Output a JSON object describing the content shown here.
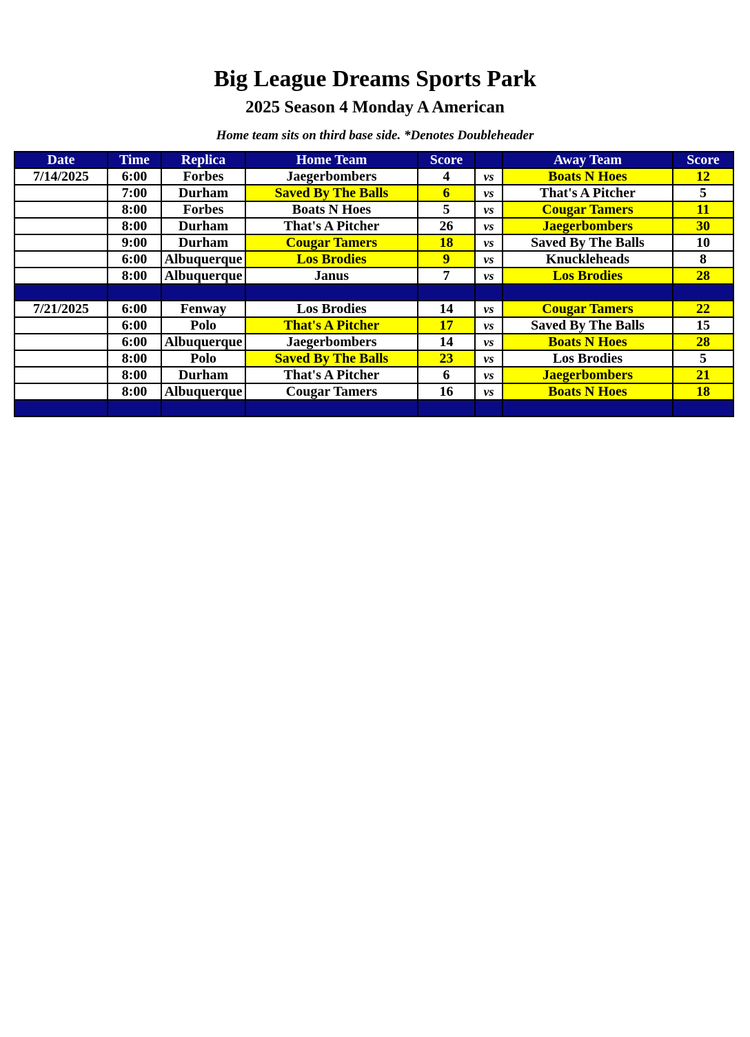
{
  "page": {
    "title": "Big League Dreams Sports Park",
    "subtitle": "2025 Season 4 Monday A American",
    "note": "Home team sits on third base side.  *Denotes Doubleheader"
  },
  "table": {
    "headers": [
      "Date",
      "Time",
      "Replica",
      "Home Team",
      "Score",
      "",
      "Away Team",
      "Score"
    ],
    "vs_label": "vs",
    "colors": {
      "header_bg": "#0a0a87",
      "header_text": "#ffffff",
      "winner_highlight": "#ffff00",
      "text": "#000000"
    },
    "blocks": [
      {
        "rows": [
          {
            "date": "7/14/2025",
            "time": "6:00",
            "replica": "Forbes",
            "home": "Jaegerbombers",
            "home_score": "4",
            "home_win": false,
            "away": "Boats N Hoes",
            "away_score": "12",
            "away_win": true
          },
          {
            "date": "",
            "time": "7:00",
            "replica": "Durham",
            "home": "Saved By The Balls",
            "home_score": "6",
            "home_win": true,
            "away": "That's A Pitcher",
            "away_score": "5",
            "away_win": false
          },
          {
            "date": "",
            "time": "8:00",
            "replica": "Forbes",
            "home": "Boats N Hoes",
            "home_score": "5",
            "home_win": false,
            "away": "Cougar Tamers",
            "away_score": "11",
            "away_win": true
          },
          {
            "date": "",
            "time": "8:00",
            "replica": "Durham",
            "home": "That's A Pitcher",
            "home_score": "26",
            "home_win": false,
            "away": "Jaegerbombers",
            "away_score": "30",
            "away_win": true
          },
          {
            "date": "",
            "time": "9:00",
            "replica": "Durham",
            "home": "Cougar Tamers",
            "home_score": "18",
            "home_win": true,
            "away": "Saved By The Balls",
            "away_score": "10",
            "away_win": false
          },
          {
            "date": "",
            "time": "6:00",
            "replica": "Albuquerque",
            "home": "Los Brodies",
            "home_score": "9",
            "home_win": true,
            "away": "Knuckleheads",
            "away_score": "8",
            "away_win": false
          },
          {
            "date": "",
            "time": "8:00",
            "replica": "Albuquerque",
            "home": "Janus",
            "home_score": "7",
            "home_win": false,
            "away": "Los Brodies",
            "away_score": "28",
            "away_win": true
          }
        ]
      },
      {
        "rows": [
          {
            "date": "7/21/2025",
            "time": "6:00",
            "replica": "Fenway",
            "home": "Los Brodies",
            "home_score": "14",
            "home_win": false,
            "away": "Cougar Tamers",
            "away_score": "22",
            "away_win": true
          },
          {
            "date": "",
            "time": "6:00",
            "replica": "Polo",
            "home": "That's A Pitcher",
            "home_score": "17",
            "home_win": true,
            "away": "Saved By The Balls",
            "away_score": "15",
            "away_win": false
          },
          {
            "date": "",
            "time": "6:00",
            "replica": "Albuquerque",
            "home": "Jaegerbombers",
            "home_score": "14",
            "home_win": false,
            "away": "Boats N Hoes",
            "away_score": "28",
            "away_win": true
          },
          {
            "date": "",
            "time": "8:00",
            "replica": "Polo",
            "home": "Saved By The Balls",
            "home_score": "23",
            "home_win": true,
            "away": "Los Brodies",
            "away_score": "5",
            "away_win": false
          },
          {
            "date": "",
            "time": "8:00",
            "replica": "Durham",
            "home": "That's A Pitcher",
            "home_score": "6",
            "home_win": false,
            "away": "Jaegerbombers",
            "away_score": "21",
            "away_win": true
          },
          {
            "date": "",
            "time": "8:00",
            "replica": "Albuquerque",
            "home": "Cougar Tamers",
            "home_score": "16",
            "home_win": false,
            "away": "Boats N Hoes",
            "away_score": "18",
            "away_win": true
          }
        ]
      }
    ]
  }
}
